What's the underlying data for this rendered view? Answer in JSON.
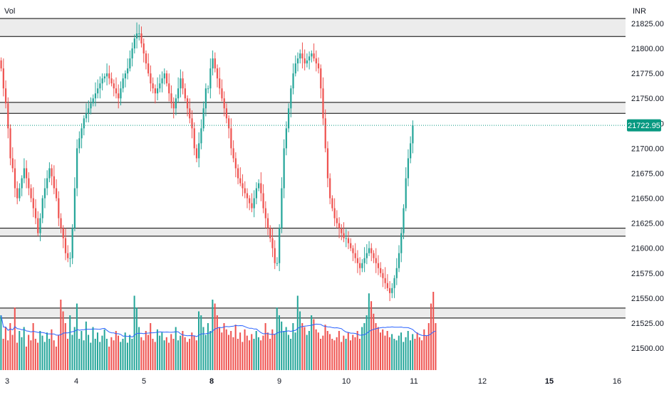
{
  "header": {
    "vol_label": "Vol",
    "currency_label": "INR"
  },
  "current_price": {
    "label": "21722.95",
    "value": 21722.95,
    "color": "#089981"
  },
  "colors": {
    "up": "#26a69a",
    "down": "#ef5350",
    "ma_line": "#2962ff",
    "zone_fill": "#ececec",
    "zone_stroke": "#000000",
    "axis_text": "#131722"
  },
  "chart_data": {
    "type": "candlestick",
    "instrument_currency": "INR",
    "y_ticks": [
      21825,
      21800,
      21775,
      21750,
      21725,
      21700,
      21675,
      21650,
      21625,
      21600,
      21575,
      21550,
      21525,
      21500
    ],
    "y_tick_labels": [
      "21825.00",
      "21800.00",
      "21775.00",
      "21750.00",
      "21725.00",
      "21700.00",
      "21675.00",
      "21650.00",
      "21625.00",
      "21600.00",
      "21575.00",
      "21550.00",
      "21525.00",
      "21500.00"
    ],
    "x_labels": [
      {
        "label": "3",
        "day": 3,
        "bold": false
      },
      {
        "label": "4",
        "day": 4,
        "bold": false
      },
      {
        "label": "5",
        "day": 5,
        "bold": false
      },
      {
        "label": "8",
        "day": 8,
        "bold": true
      },
      {
        "label": "9",
        "day": 9,
        "bold": false
      },
      {
        "label": "10",
        "day": 10,
        "bold": false
      },
      {
        "label": "11",
        "day": 11,
        "bold": false
      },
      {
        "label": "12",
        "day": 12,
        "bold": false
      },
      {
        "label": "15",
        "day": 15,
        "bold": true
      },
      {
        "label": "16",
        "day": 16,
        "bold": false
      }
    ],
    "zones": [
      {
        "top": 21830,
        "bottom": 21812
      },
      {
        "top": 21746,
        "bottom": 21735
      },
      {
        "top": 21620,
        "bottom": 21612
      },
      {
        "top": 21540,
        "bottom": 21530
      }
    ],
    "candle_path_days": [
      {
        "day": 3,
        "path": [
          21780,
          21760,
          21745,
          21720,
          21690,
          21680,
          21660,
          21650,
          21660,
          21670,
          21680,
          21670,
          21660,
          21650,
          21640,
          21630,
          21615,
          21630,
          21650,
          21660,
          21670,
          21680,
          21672,
          21660,
          21650,
          21630,
          21620,
          21610,
          21595,
          21590
        ]
      },
      {
        "day": 4,
        "path": [
          21590,
          21620,
          21660,
          21700,
          21710,
          21720,
          21730,
          21735,
          21740,
          21745,
          21750,
          21755,
          21760,
          21765,
          21770,
          21772,
          21775,
          21770,
          21765,
          21760,
          21755,
          21750,
          21760,
          21770,
          21775,
          21780,
          21790,
          21800,
          21810,
          21815
        ]
      },
      {
        "day": 5,
        "path": [
          21815,
          21805,
          21795,
          21785,
          21775,
          21765,
          21760,
          21755,
          21760,
          21765,
          21770,
          21775,
          21765,
          21755,
          21745,
          21740,
          21750,
          21760,
          21770,
          21760,
          21750,
          21740,
          21730,
          21720,
          21700,
          21690,
          21705,
          21720,
          21740,
          21760
        ]
      },
      {
        "day": 8,
        "path": [
          21760,
          21780,
          21790,
          21780,
          21770,
          21760,
          21750,
          21740,
          21730,
          21720,
          21700,
          21690,
          21680,
          21670,
          21665,
          21660,
          21655,
          21650,
          21645,
          21640,
          21650,
          21660,
          21665,
          21655,
          21640,
          21630,
          21620,
          21610,
          21600,
          21585
        ]
      },
      {
        "day": 9,
        "path": [
          21585,
          21620,
          21660,
          21700,
          21720,
          21740,
          21760,
          21775,
          21785,
          21790,
          21795,
          21790,
          21785,
          21788,
          21792,
          21795,
          21790,
          21785,
          21780,
          21760,
          21730,
          21700,
          21670,
          21650,
          21640,
          21630,
          21625,
          21620,
          21615,
          21610
        ]
      },
      {
        "day": 10,
        "path": [
          21610,
          21605,
          21600,
          21595,
          21590,
          21585,
          21580,
          21585,
          21590,
          21595,
          21600,
          21595,
          21590,
          21585,
          21580,
          21575,
          21570,
          21565,
          21560,
          21555,
          21560,
          21570,
          21580,
          21595,
          21615,
          21640,
          21670,
          21690,
          21705,
          21722.95
        ]
      }
    ],
    "volume": {
      "bars_per_day": 30,
      "ma_period": 20,
      "values": [
        70,
        40,
        55,
        38,
        60,
        45,
        80,
        35,
        50,
        42,
        55,
        30,
        45,
        38,
        60,
        40,
        35,
        50,
        44,
        36,
        48,
        40,
        52,
        38,
        30,
        45,
        90,
        75,
        60,
        40,
        70,
        45,
        55,
        85,
        40,
        50,
        38,
        62,
        45,
        35,
        55,
        40,
        48,
        36,
        44,
        52,
        40,
        30,
        42,
        38,
        50,
        44,
        36,
        40,
        48,
        35,
        45,
        40,
        95,
        80,
        55,
        42,
        38,
        50,
        45,
        60,
        40,
        36,
        52,
        44,
        48,
        38,
        42,
        35,
        46,
        40,
        55,
        38,
        44,
        50,
        42,
        36,
        40,
        48,
        44,
        38,
        75,
        70,
        55,
        45,
        60,
        50,
        90,
        85,
        70,
        55,
        48,
        60,
        52,
        45,
        50,
        42,
        58,
        40,
        48,
        36,
        52,
        44,
        38,
        46,
        40,
        50,
        42,
        38,
        44,
        60,
        48,
        40,
        52,
        46,
        80,
        70,
        62,
        50,
        55,
        45,
        40,
        60,
        48,
        95,
        75,
        60,
        55,
        45,
        50,
        70,
        65,
        52,
        48,
        40,
        44,
        58,
        50,
        46,
        40,
        38,
        42,
        50,
        36,
        44,
        40,
        48,
        38,
        45,
        42,
        50,
        40,
        55,
        60,
        70,
        98,
        88,
        72,
        60,
        55,
        48,
        52,
        44,
        50,
        42,
        46,
        40,
        38,
        44,
        48,
        36,
        42,
        50,
        38,
        46,
        40,
        48,
        42,
        38,
        52,
        44,
        60,
        85,
        100,
        60
      ]
    }
  }
}
